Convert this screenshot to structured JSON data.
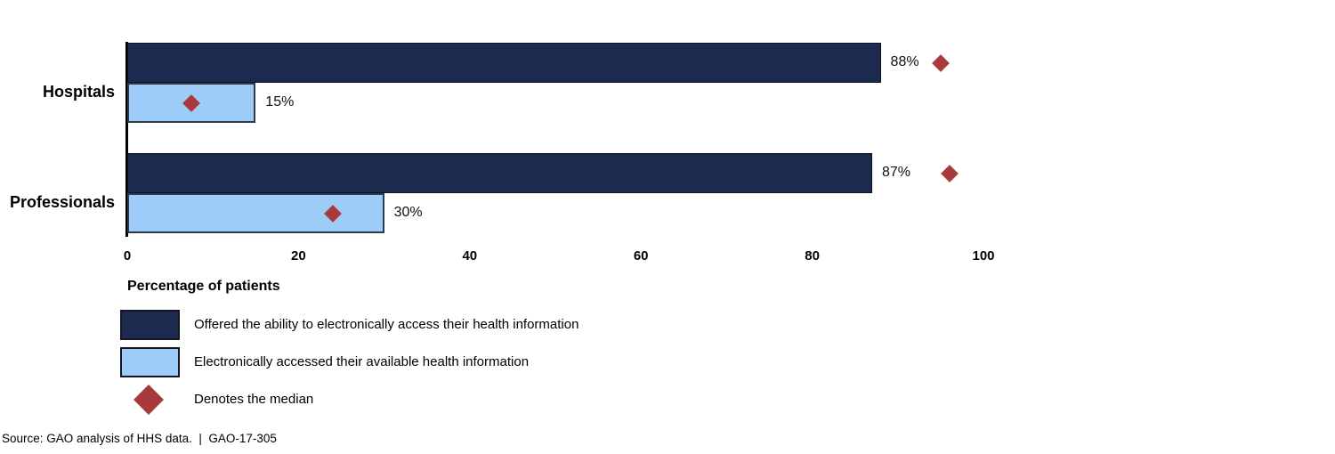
{
  "chart_data": {
    "type": "bar",
    "orientation": "horizontal",
    "xlabel": "Percentage of patients",
    "xlim": [
      0,
      100
    ],
    "xticks": [
      "0",
      "20",
      "40",
      "60",
      "80",
      "100"
    ],
    "grid": false,
    "legend_position": "bottom-left",
    "categories": [
      "Hospitals",
      "Professionals"
    ],
    "series": [
      {
        "key": "offered",
        "name": "Offered the ability to electronically access their health information",
        "values": [
          88,
          87
        ],
        "value_labels": [
          "88%",
          "87%"
        ],
        "medians": [
          95,
          96
        ]
      },
      {
        "key": "accessed",
        "name": "Electronically accessed their available health information",
        "values": [
          15,
          30
        ],
        "value_labels": [
          "15%",
          "30%"
        ],
        "medians": [
          7.5,
          24
        ]
      }
    ],
    "median_marker": "Denotes the median"
  },
  "legend": {
    "items": [
      {
        "swatch": "navy-rect",
        "label": "Offered the ability to electronically access their health information"
      },
      {
        "swatch": "light-blue-rect",
        "label": "Electronically accessed their available health information"
      },
      {
        "swatch": "red-diamond",
        "label": "Denotes the median"
      }
    ]
  },
  "source_line": "Source: GAO analysis of HHS data.  |  GAO-17-305",
  "colors": {
    "navy": "#1b2a4e",
    "navy_border": "#0c1322",
    "light_blue": "#9dccf8",
    "light_blue_border": "#2f3b4d",
    "median_red": "#a93a3c",
    "text": "#000000",
    "background": "#ffffff"
  }
}
